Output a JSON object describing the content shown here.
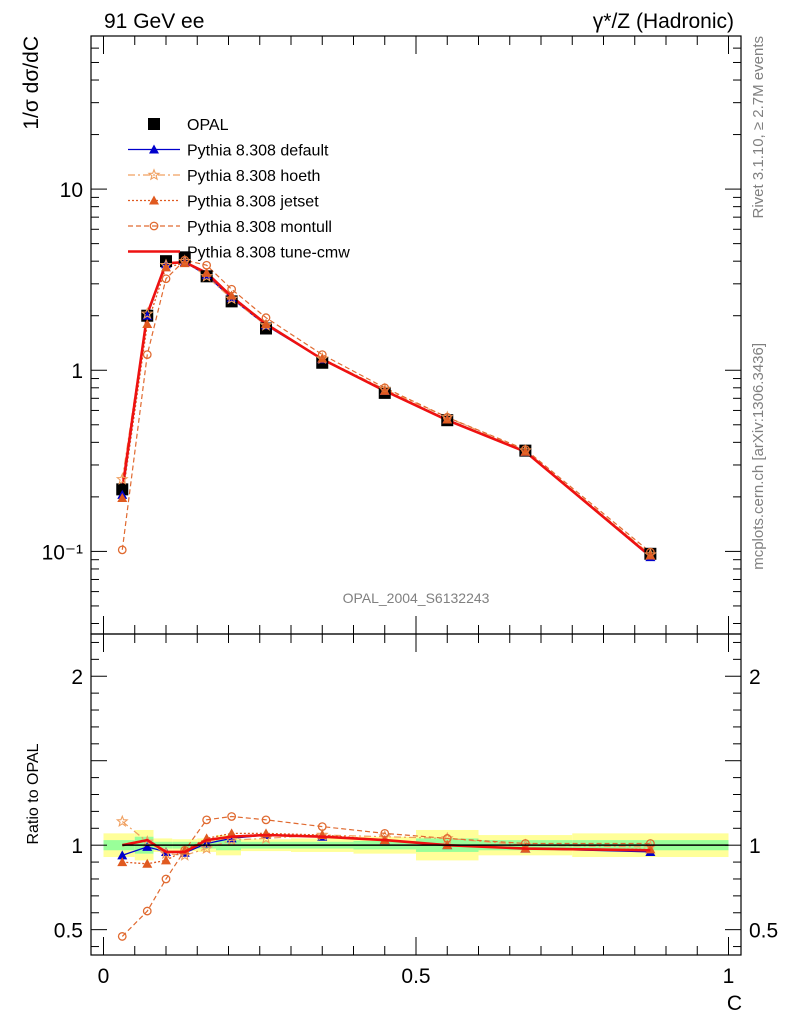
{
  "header": {
    "left": "91 GeV ee",
    "right": "γ*/Z (Hadronic)"
  },
  "side_text": {
    "rivet": "Rivet 3.1.10, ≥ 2.7M events",
    "mcplots": "mcplots.cern.ch [arXiv:1306.3436]"
  },
  "analysis_label": "OPAL_2004_S6132243",
  "colors": {
    "data": "#000000",
    "default": "#0000cc",
    "hoeth": "#f0a060",
    "jetset": "#e05a20",
    "montull": "#e06a30",
    "tune_cmw": "#ee1111",
    "band_green": "#99ff99",
    "band_yellow": "#ffff99"
  },
  "chart_data": [
    {
      "type": "line",
      "ylabel": "1/σ dσ/dC",
      "yscale": "log",
      "ylim": [
        0.035,
        70
      ],
      "xlim": [
        -0.02,
        1.02
      ],
      "yticks": [
        {
          "v": 10,
          "label": "10"
        },
        {
          "v": 1,
          "label": "1"
        },
        {
          "v": 0.1,
          "label": "10⁻¹"
        }
      ],
      "x": [
        0.03,
        0.07,
        0.1,
        0.13,
        0.165,
        0.205,
        0.26,
        0.35,
        0.45,
        0.55,
        0.675,
        0.875
      ],
      "legend_position": "top-left",
      "series": [
        {
          "name": "OPAL",
          "key": "data",
          "marker": "square",
          "values": [
            0.22,
            2.0,
            4.0,
            4.2,
            3.3,
            2.4,
            1.7,
            1.1,
            0.75,
            0.53,
            0.36,
            0.097
          ]
        },
        {
          "name": "Pythia 8.308 default",
          "key": "default",
          "marker": "triangle",
          "values": [
            0.205,
            2.0,
            3.85,
            3.95,
            3.35,
            2.5,
            1.77,
            1.15,
            0.77,
            0.535,
            0.355,
            0.093
          ]
        },
        {
          "name": "Pythia 8.308 hoeth",
          "key": "hoeth",
          "marker": "star",
          "values": [
            0.25,
            2.05,
            3.8,
            4.0,
            3.3,
            2.48,
            1.77,
            1.16,
            0.785,
            0.55,
            0.36,
            0.096
          ]
        },
        {
          "name": "Pythia 8.308 jetset",
          "key": "jetset",
          "marker": "triangle-filled",
          "values": [
            0.197,
            1.8,
            3.7,
            3.9,
            3.45,
            2.58,
            1.8,
            1.16,
            0.77,
            0.535,
            0.355,
            0.095
          ]
        },
        {
          "name": "Pythia 8.308 montull",
          "key": "montull",
          "marker": "circle-open",
          "values": [
            0.102,
            1.22,
            3.2,
            4.05,
            3.8,
            2.8,
            1.95,
            1.22,
            0.8,
            0.55,
            0.365,
            0.099
          ]
        },
        {
          "name": "Pythia 8.308 tune-cmw",
          "key": "tune_cmw",
          "marker": "none",
          "values": [
            0.22,
            2.05,
            3.9,
            3.95,
            3.45,
            2.55,
            1.8,
            1.15,
            0.77,
            0.53,
            0.355,
            0.094
          ]
        }
      ]
    },
    {
      "type": "line",
      "ylabel": "Ratio to OPAL",
      "xlabel": "C",
      "ylim": [
        0.35,
        2.25
      ],
      "xlim": [
        -0.02,
        1.02
      ],
      "yticks": [
        {
          "v": 2,
          "label": "2"
        },
        {
          "v": 1,
          "label": "1"
        },
        {
          "v": 0.5,
          "label": "0.5"
        }
      ],
      "xticks": [
        {
          "v": 0,
          "label": "0"
        },
        {
          "v": 0.5,
          "label": "0.5"
        },
        {
          "v": 1,
          "label": "1"
        }
      ],
      "x": [
        0.03,
        0.07,
        0.1,
        0.13,
        0.165,
        0.205,
        0.26,
        0.35,
        0.45,
        0.55,
        0.675,
        0.875
      ],
      "bins": [
        [
          0.0,
          0.05
        ],
        [
          0.05,
          0.08
        ],
        [
          0.08,
          0.11
        ],
        [
          0.11,
          0.15
        ],
        [
          0.15,
          0.18
        ],
        [
          0.18,
          0.22
        ],
        [
          0.22,
          0.3
        ],
        [
          0.3,
          0.4
        ],
        [
          0.4,
          0.5
        ],
        [
          0.5,
          0.6
        ],
        [
          0.6,
          0.75
        ],
        [
          0.75,
          1.0
        ]
      ],
      "band_stat": [
        0.03,
        0.05,
        0.02,
        0.02,
        0.02,
        0.03,
        0.02,
        0.02,
        0.025,
        0.04,
        0.03,
        0.03
      ],
      "band_total": [
        0.07,
        0.09,
        0.04,
        0.035,
        0.04,
        0.06,
        0.035,
        0.04,
        0.05,
        0.09,
        0.06,
        0.07
      ],
      "series": [
        {
          "name": "Pythia 8.308 default",
          "key": "default",
          "marker": "triangle",
          "values": [
            0.94,
            0.99,
            0.96,
            0.955,
            1.01,
            1.04,
            1.06,
            1.05,
            1.03,
            1.0,
            0.98,
            0.96
          ]
        },
        {
          "name": "Pythia 8.308 hoeth",
          "key": "hoeth",
          "marker": "star",
          "values": [
            1.14,
            1.02,
            0.95,
            0.94,
            0.98,
            1.03,
            1.04,
            1.06,
            1.05,
            1.04,
            1.0,
            0.99
          ]
        },
        {
          "name": "Pythia 8.308 jetset",
          "key": "jetset",
          "marker": "triangle-filled",
          "values": [
            0.9,
            0.89,
            0.91,
            0.97,
            1.04,
            1.07,
            1.07,
            1.06,
            1.03,
            1.0,
            0.98,
            0.975
          ]
        },
        {
          "name": "Pythia 8.308 montull",
          "key": "montull",
          "marker": "circle-open",
          "values": [
            0.46,
            0.61,
            0.8,
            0.97,
            1.15,
            1.17,
            1.15,
            1.11,
            1.07,
            1.04,
            1.01,
            1.01
          ]
        },
        {
          "name": "Pythia 8.308 tune-cmw",
          "key": "tune_cmw",
          "marker": "none",
          "values": [
            1.0,
            1.03,
            0.96,
            0.96,
            1.03,
            1.05,
            1.06,
            1.05,
            1.03,
            1.0,
            0.98,
            0.97
          ]
        }
      ]
    }
  ]
}
